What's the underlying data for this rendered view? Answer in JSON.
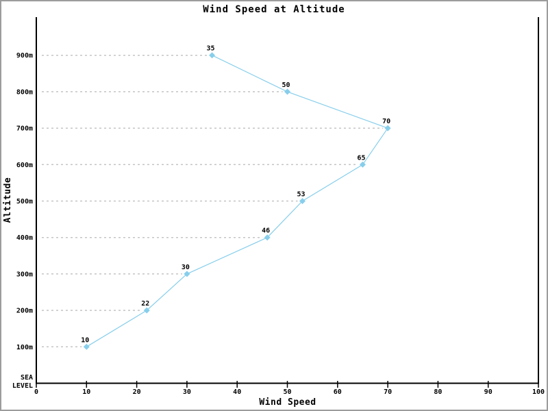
{
  "window": {
    "background": "#ffffff",
    "border_color": "#9c9c9c"
  },
  "chart_data": {
    "type": "line",
    "title": "Wind Speed at Altitude",
    "xlabel": "Wind Speed",
    "ylabel": "Altitude",
    "xlim": [
      0,
      100
    ],
    "x_ticks": [
      0,
      10,
      20,
      30,
      40,
      50,
      60,
      70,
      80,
      90,
      100
    ],
    "y_tick_labels": [
      "100m",
      "200m",
      "300m",
      "400m",
      "500m",
      "600m",
      "700m",
      "800m",
      "900m"
    ],
    "sea_level_label_lines": [
      "SEA",
      "LEVEL"
    ],
    "grid": {
      "visible": true,
      "style": "dashed",
      "extends": "y-axis-to-data-point",
      "color": "#c4c4c4"
    },
    "legend": {
      "visible": false
    },
    "axis_color": "#000000",
    "label_color": "#000000",
    "series": [
      {
        "name": "wind-speed-vs-altitude",
        "marker": "diamond",
        "color": "#87ceeb",
        "points": [
          {
            "altitude_m": 100,
            "wind_speed": 10,
            "label": "10"
          },
          {
            "altitude_m": 200,
            "wind_speed": 22,
            "label": "22"
          },
          {
            "altitude_m": 300,
            "wind_speed": 30,
            "label": "30"
          },
          {
            "altitude_m": 400,
            "wind_speed": 46,
            "label": "46"
          },
          {
            "altitude_m": 500,
            "wind_speed": 53,
            "label": "53"
          },
          {
            "altitude_m": 600,
            "wind_speed": 65,
            "label": "65"
          },
          {
            "altitude_m": 700,
            "wind_speed": 70,
            "label": "70"
          },
          {
            "altitude_m": 800,
            "wind_speed": 50,
            "label": "50"
          },
          {
            "altitude_m": 900,
            "wind_speed": 35,
            "label": "35"
          }
        ]
      }
    ]
  }
}
